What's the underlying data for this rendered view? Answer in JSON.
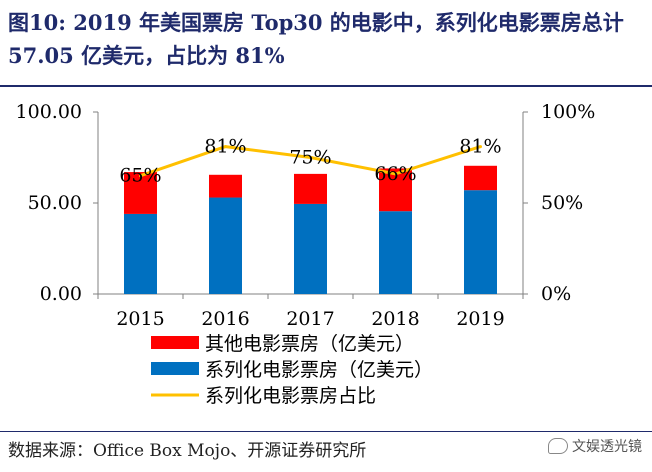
{
  "header": {
    "title": "图10:  2019 年美国票房 Top30 的电影中，系列化电影票房总计 57.05 亿美元，占比为 81%"
  },
  "colors": {
    "title": "#1f2a6b",
    "other_bar": "#ff0000",
    "series_bar": "#0070c0",
    "share_line": "#ffc000",
    "axis": "#808080",
    "text": "#000000"
  },
  "chart_data": {
    "type": "bar",
    "stacked": true,
    "categories": [
      "2015",
      "2016",
      "2017",
      "2018",
      "2019"
    ],
    "series": [
      {
        "name": "系列化电影票房（亿美元）",
        "kind": "bar",
        "axis": "left",
        "values": [
          44.0,
          53.0,
          49.5,
          45.5,
          57.05
        ]
      },
      {
        "name": "其他电影票房（亿美元）",
        "kind": "bar",
        "axis": "left",
        "values": [
          23.0,
          12.5,
          16.5,
          23.5,
          13.4
        ]
      },
      {
        "name": "系列化电影票房占比",
        "kind": "line",
        "axis": "right",
        "values": [
          65,
          81,
          75,
          66,
          81
        ],
        "labels": [
          "65%",
          "81%",
          "75%",
          "66%",
          "81%"
        ]
      }
    ],
    "y_left": {
      "min": 0,
      "max": 100,
      "ticks": [
        0,
        50,
        100
      ],
      "tick_labels": [
        "0.00",
        "50.00",
        "100.00"
      ]
    },
    "y_right": {
      "min": 0,
      "max": 100,
      "ticks": [
        0,
        50,
        100
      ],
      "tick_labels": [
        "0%",
        "50%",
        "100%"
      ]
    },
    "legend": {
      "position": "bottom",
      "items": [
        {
          "label": "其他电影票房（亿美元）",
          "kind": "bar",
          "color_key": "other_bar"
        },
        {
          "label": "系列化电影票房（亿美元）",
          "kind": "bar",
          "color_key": "series_bar"
        },
        {
          "label": "系列化电影票房占比",
          "kind": "line",
          "color_key": "share_line"
        }
      ]
    },
    "grid": false
  },
  "footer": {
    "source": "数据来源：Office Box Mojo、开源证券研究所",
    "watermark": "文娱透光镜"
  }
}
